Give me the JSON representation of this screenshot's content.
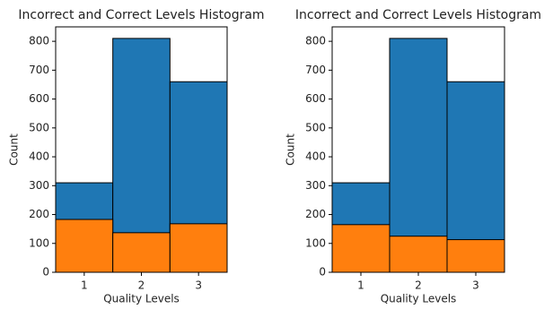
{
  "chart_data": [
    {
      "type": "histogram",
      "title": "Incorrect and Correct Levels Histogram",
      "xlabel": "Quality Levels",
      "ylabel": "Count",
      "bins": [
        0.5,
        1.5,
        2.5,
        3.5
      ],
      "xlim": [
        0.5,
        3.5
      ],
      "xticks": [
        1,
        2,
        3
      ],
      "ylim": [
        0,
        850
      ],
      "yticks": [
        0,
        100,
        200,
        300,
        400,
        500,
        600,
        700,
        800
      ],
      "series": [
        {
          "color": "#1f77b4",
          "values": [
            310,
            810,
            660
          ]
        },
        {
          "color": "#ff7f0e",
          "values": [
            183,
            137,
            168
          ]
        }
      ]
    },
    {
      "type": "histogram",
      "title": "Incorrect and Correct Levels Histogram",
      "xlabel": "Quality Levels",
      "ylabel": "Count",
      "bins": [
        0.5,
        1.5,
        2.5,
        3.5
      ],
      "xlim": [
        0.5,
        3.5
      ],
      "xticks": [
        1,
        2,
        3
      ],
      "ylim": [
        0,
        850
      ],
      "yticks": [
        0,
        100,
        200,
        300,
        400,
        500,
        600,
        700,
        800
      ],
      "series": [
        {
          "color": "#1f77b4",
          "values": [
            310,
            810,
            660
          ]
        },
        {
          "color": "#ff7f0e",
          "values": [
            165,
            125,
            113
          ]
        }
      ]
    }
  ]
}
